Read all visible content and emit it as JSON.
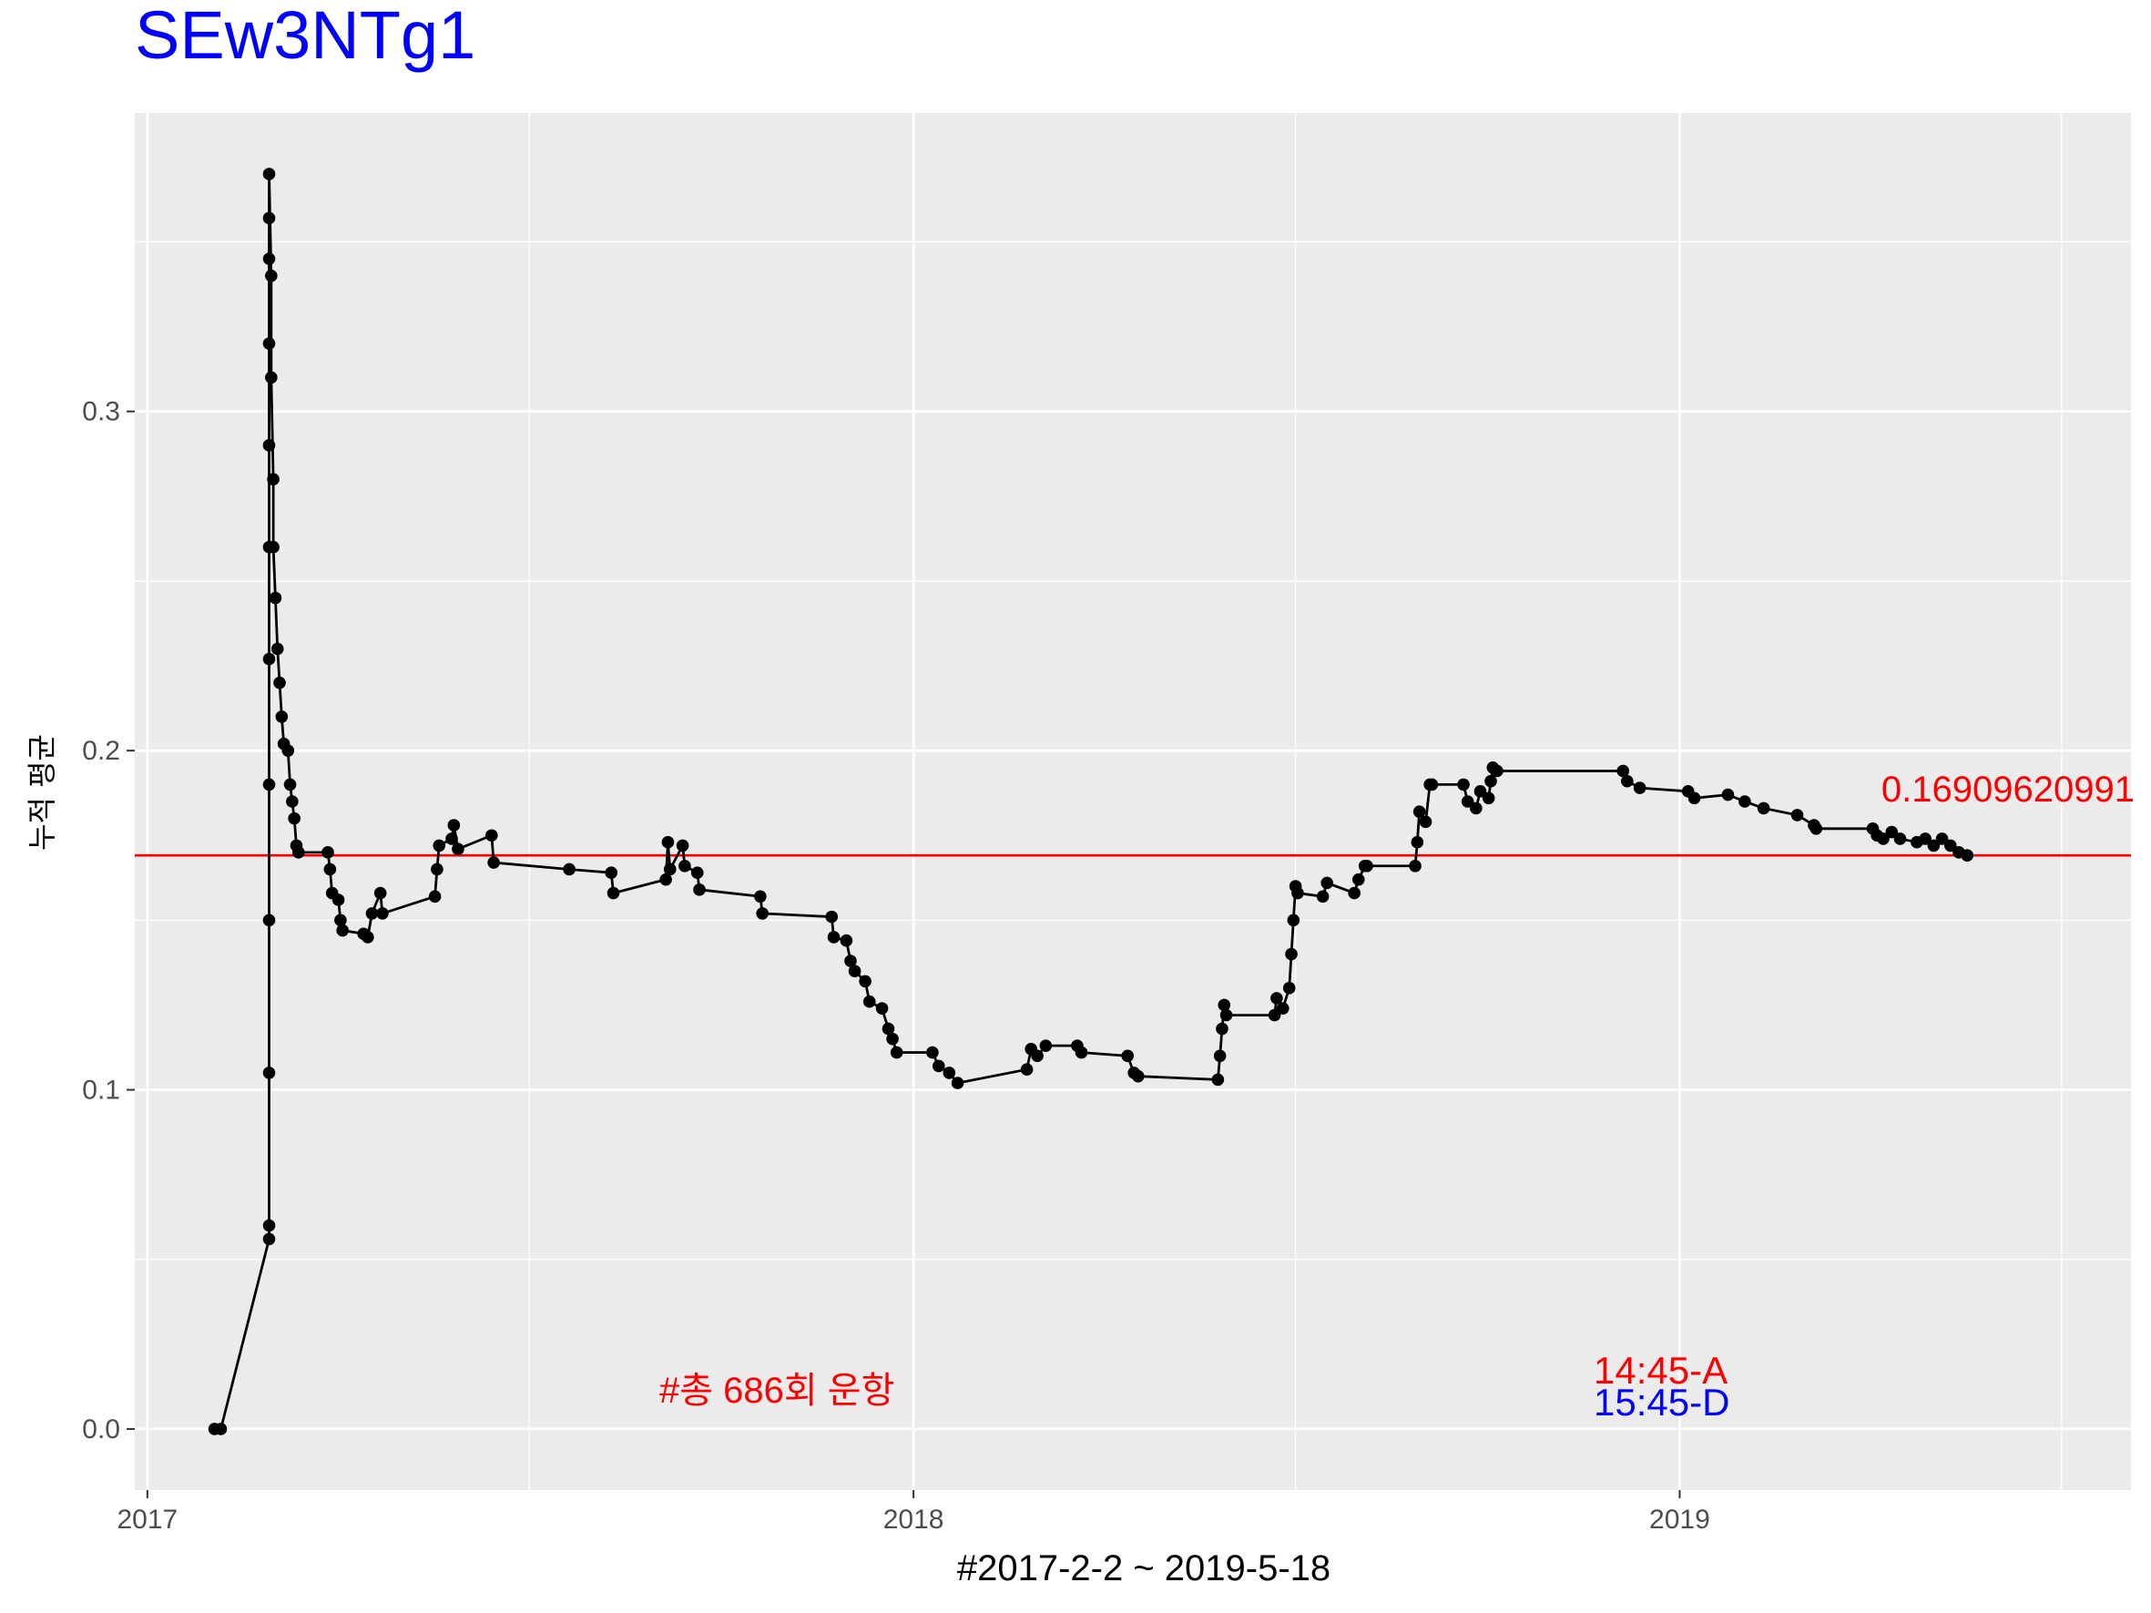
{
  "title": "SEw3NTg1",
  "colors": {
    "title": "#0000ff",
    "mean_line": "#ff0000",
    "annotation_red": "#ff0000",
    "annotation_blue": "#0000ff",
    "panel_bg": "#ebebeb",
    "grid": "#ffffff",
    "series": "#000000"
  },
  "chart_data": {
    "type": "line",
    "title": "SEw3NTg1",
    "xlabel": "#2017-2-2 ~ 2019-5-18",
    "ylabel": "누적 평균",
    "x_axis_type": "date",
    "xlim": [
      "2016-12-26",
      "2019-08-04"
    ],
    "ylim": [
      -0.018,
      0.388
    ],
    "x_ticks": [
      "2017",
      "2018",
      "2019"
    ],
    "y_ticks": [
      "0.0",
      "0.1",
      "0.2",
      "0.3"
    ],
    "grid": true,
    "reference_line": {
      "y": 0.16909620991,
      "label": "0.16909620991"
    },
    "annotations": {
      "total_runs": "#총 686회 운항",
      "arrival": "14:45-A",
      "departure": "15:45-D"
    },
    "series": [
      {
        "points": [
          [
            "2017-02-02",
            0.0
          ],
          [
            "2017-02-05",
            0.0
          ],
          [
            "2017-02-28",
            0.056
          ],
          [
            "2017-02-28",
            0.06
          ],
          [
            "2017-02-28",
            0.105
          ],
          [
            "2017-02-28",
            0.15
          ],
          [
            "2017-02-28",
            0.19
          ],
          [
            "2017-02-28",
            0.227
          ],
          [
            "2017-02-28",
            0.26
          ],
          [
            "2017-02-28",
            0.29
          ],
          [
            "2017-02-28",
            0.32
          ],
          [
            "2017-02-28",
            0.345
          ],
          [
            "2017-02-28",
            0.357
          ],
          [
            "2017-02-28",
            0.37
          ],
          [
            "2017-03-01",
            0.34
          ],
          [
            "2017-03-01",
            0.31
          ],
          [
            "2017-03-02",
            0.28
          ],
          [
            "2017-03-02",
            0.26
          ],
          [
            "2017-03-03",
            0.245
          ],
          [
            "2017-03-04",
            0.23
          ],
          [
            "2017-03-05",
            0.22
          ],
          [
            "2017-03-06",
            0.21
          ],
          [
            "2017-03-07",
            0.202
          ],
          [
            "2017-03-09",
            0.2
          ],
          [
            "2017-03-10",
            0.19
          ],
          [
            "2017-03-11",
            0.185
          ],
          [
            "2017-03-12",
            0.18
          ],
          [
            "2017-03-13",
            0.172
          ],
          [
            "2017-03-14",
            0.17
          ],
          [
            "2017-03-28",
            0.17
          ],
          [
            "2017-03-29",
            0.165
          ],
          [
            "2017-03-30",
            0.158
          ],
          [
            "2017-04-02",
            0.156
          ],
          [
            "2017-04-03",
            0.15
          ],
          [
            "2017-04-04",
            0.147
          ],
          [
            "2017-04-14",
            0.146
          ],
          [
            "2017-04-16",
            0.145
          ],
          [
            "2017-04-18",
            0.152
          ],
          [
            "2017-04-22",
            0.158
          ],
          [
            "2017-04-23",
            0.152
          ],
          [
            "2017-05-18",
            0.157
          ],
          [
            "2017-05-19",
            0.165
          ],
          [
            "2017-05-20",
            0.172
          ],
          [
            "2017-05-26",
            0.174
          ],
          [
            "2017-05-27",
            0.178
          ],
          [
            "2017-05-29",
            0.171
          ],
          [
            "2017-06-14",
            0.175
          ],
          [
            "2017-06-15",
            0.167
          ],
          [
            "2017-07-21",
            0.165
          ],
          [
            "2017-08-10",
            0.164
          ],
          [
            "2017-08-11",
            0.158
          ],
          [
            "2017-09-05",
            0.162
          ],
          [
            "2017-09-06",
            0.173
          ],
          [
            "2017-09-07",
            0.165
          ],
          [
            "2017-09-13",
            0.172
          ],
          [
            "2017-09-14",
            0.166
          ],
          [
            "2017-09-20",
            0.164
          ],
          [
            "2017-09-21",
            0.159
          ],
          [
            "2017-10-20",
            0.157
          ],
          [
            "2017-10-21",
            0.152
          ],
          [
            "2017-11-23",
            0.151
          ],
          [
            "2017-11-24",
            0.145
          ],
          [
            "2017-11-30",
            0.144
          ],
          [
            "2017-12-02",
            0.138
          ],
          [
            "2017-12-04",
            0.135
          ],
          [
            "2017-12-09",
            0.132
          ],
          [
            "2017-12-11",
            0.126
          ],
          [
            "2017-12-17",
            0.124
          ],
          [
            "2017-12-20",
            0.118
          ],
          [
            "2017-12-22",
            0.115
          ],
          [
            "2017-12-24",
            0.111
          ],
          [
            "2018-01-10",
            0.111
          ],
          [
            "2018-01-13",
            0.107
          ],
          [
            "2018-01-18",
            0.105
          ],
          [
            "2018-01-22",
            0.102
          ],
          [
            "2018-02-24",
            0.106
          ],
          [
            "2018-02-26",
            0.112
          ],
          [
            "2018-03-01",
            0.11
          ],
          [
            "2018-03-05",
            0.113
          ],
          [
            "2018-03-20",
            0.113
          ],
          [
            "2018-03-22",
            0.111
          ],
          [
            "2018-04-13",
            0.11
          ],
          [
            "2018-04-16",
            0.105
          ],
          [
            "2018-04-18",
            0.104
          ],
          [
            "2018-05-26",
            0.103
          ],
          [
            "2018-05-27",
            0.11
          ],
          [
            "2018-05-28",
            0.118
          ],
          [
            "2018-05-29",
            0.125
          ],
          [
            "2018-05-30",
            0.122
          ],
          [
            "2018-06-22",
            0.122
          ],
          [
            "2018-06-23",
            0.127
          ],
          [
            "2018-06-26",
            0.124
          ],
          [
            "2018-06-29",
            0.13
          ],
          [
            "2018-06-30",
            0.14
          ],
          [
            "2018-07-01",
            0.15
          ],
          [
            "2018-07-02",
            0.16
          ],
          [
            "2018-07-03",
            0.158
          ],
          [
            "2018-07-15",
            0.157
          ],
          [
            "2018-07-17",
            0.161
          ],
          [
            "2018-07-30",
            0.158
          ],
          [
            "2018-08-01",
            0.162
          ],
          [
            "2018-08-04",
            0.166
          ],
          [
            "2018-08-05",
            0.166
          ],
          [
            "2018-08-28",
            0.166
          ],
          [
            "2018-08-29",
            0.173
          ],
          [
            "2018-08-30",
            0.182
          ],
          [
            "2018-09-02",
            0.179
          ],
          [
            "2018-09-04",
            0.19
          ],
          [
            "2018-09-05",
            0.19
          ],
          [
            "2018-09-20",
            0.19
          ],
          [
            "2018-09-22",
            0.185
          ],
          [
            "2018-09-26",
            0.183
          ],
          [
            "2018-09-28",
            0.188
          ],
          [
            "2018-10-02",
            0.186
          ],
          [
            "2018-10-03",
            0.191
          ],
          [
            "2018-10-04",
            0.195
          ],
          [
            "2018-10-06",
            0.194
          ],
          [
            "2018-12-05",
            0.194
          ],
          [
            "2018-12-07",
            0.191
          ],
          [
            "2018-12-13",
            0.189
          ],
          [
            "2019-01-05",
            0.188
          ],
          [
            "2019-01-08",
            0.186
          ],
          [
            "2019-01-24",
            0.187
          ],
          [
            "2019-02-01",
            0.185
          ],
          [
            "2019-02-10",
            0.183
          ],
          [
            "2019-02-26",
            0.181
          ],
          [
            "2019-03-06",
            0.178
          ],
          [
            "2019-03-07",
            0.177
          ],
          [
            "2019-04-03",
            0.177
          ],
          [
            "2019-04-05",
            0.175
          ],
          [
            "2019-04-08",
            0.174
          ],
          [
            "2019-04-12",
            0.176
          ],
          [
            "2019-04-16",
            0.174
          ],
          [
            "2019-04-24",
            0.173
          ],
          [
            "2019-04-28",
            0.174
          ],
          [
            "2019-05-02",
            0.172
          ],
          [
            "2019-05-06",
            0.174
          ],
          [
            "2019-05-10",
            0.172
          ],
          [
            "2019-05-14",
            0.17
          ],
          [
            "2019-05-18",
            0.16909620991
          ]
        ]
      }
    ]
  }
}
